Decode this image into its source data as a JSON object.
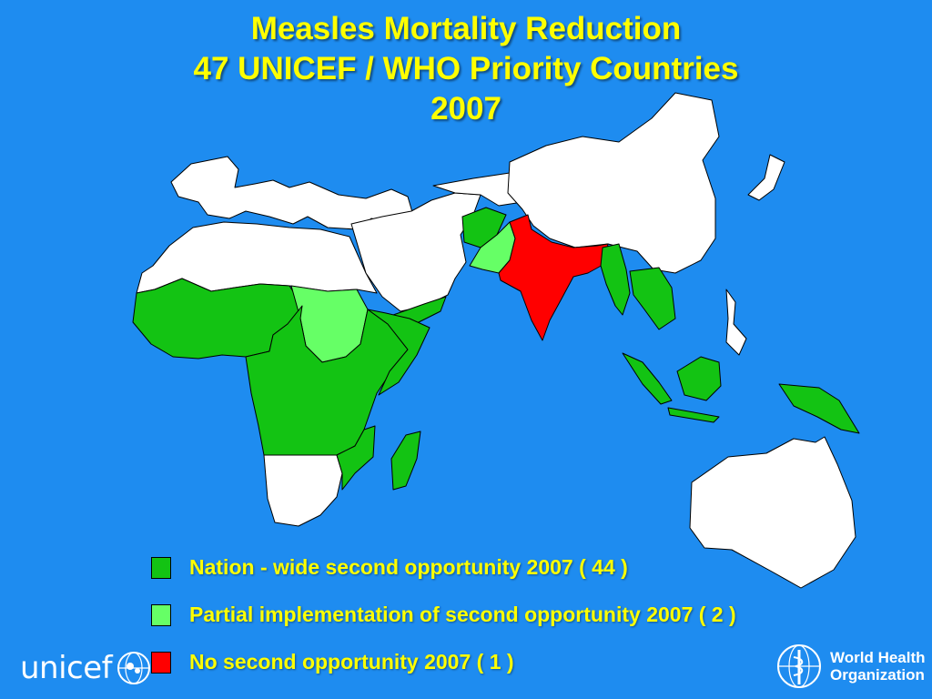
{
  "title": {
    "line1": "Measles Mortality Reduction",
    "line2": "47 UNICEF / WHO Priority Countries",
    "line3": "2007"
  },
  "colors": {
    "background": "#1e8cf0",
    "title_text": "#ffff00",
    "nation_wide": "#13c313",
    "partial": "#66ff66",
    "none": "#ff0000",
    "other_countries": "#ffffff"
  },
  "legend": {
    "items": [
      {
        "label": "Nation - wide second opportunity 2007 ( 44 )",
        "color": "#13c313"
      },
      {
        "label": "Partial implementation of second opportunity 2007 ( 2 )",
        "color": "#66ff66"
      },
      {
        "label": "No second opportunity 2007 ( 1 )",
        "color": "#ff0000"
      }
    ]
  },
  "logos": {
    "unicef_wordmark": "unicef",
    "who_line1": "World Health",
    "who_line2": "Organization"
  },
  "icons": {
    "unicef_emblem": "unicef-emblem-icon",
    "who_emblem": "who-emblem-icon"
  }
}
